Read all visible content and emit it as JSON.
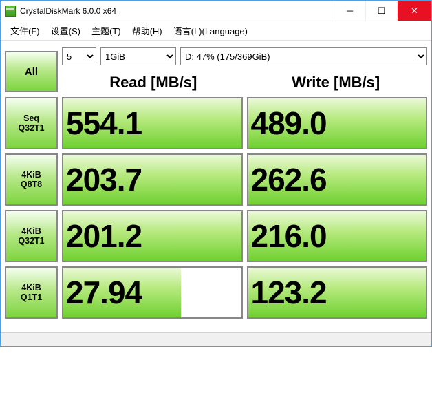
{
  "window": {
    "title": "CrystalDiskMark 6.0.0 x64"
  },
  "menu": {
    "file": "文件(F)",
    "settings": "设置(S)",
    "theme": "主题(T)",
    "help": "帮助(H)",
    "language": "语言(L)(Language)"
  },
  "controls": {
    "all_label": "All",
    "iterations": "5",
    "data_size": "1GiB",
    "drive": "D: 47% (175/369GiB)"
  },
  "headers": {
    "read": "Read [MB/s]",
    "write": "Write [MB/s]"
  },
  "tests": [
    {
      "label1": "Seq",
      "label2": "Q32T1",
      "read": "554.1",
      "read_pct": 100,
      "write": "489.0",
      "write_pct": 100
    },
    {
      "label1": "4KiB",
      "label2": "Q8T8",
      "read": "203.7",
      "read_pct": 100,
      "write": "262.6",
      "write_pct": 100
    },
    {
      "label1": "4KiB",
      "label2": "Q32T1",
      "read": "201.2",
      "read_pct": 100,
      "write": "216.0",
      "write_pct": 100
    },
    {
      "label1": "4KiB",
      "label2": "Q1T1",
      "read": "27.94",
      "read_pct": 66,
      "write": "123.2",
      "write_pct": 100
    }
  ],
  "colors": {
    "accent_green_light": "#eaf9d8",
    "accent_green_mid": "#b8ea80",
    "accent_green_dark": "#6fd030",
    "border": "#888888",
    "close_bg": "#e81123",
    "window_border": "#4aa0e0"
  }
}
